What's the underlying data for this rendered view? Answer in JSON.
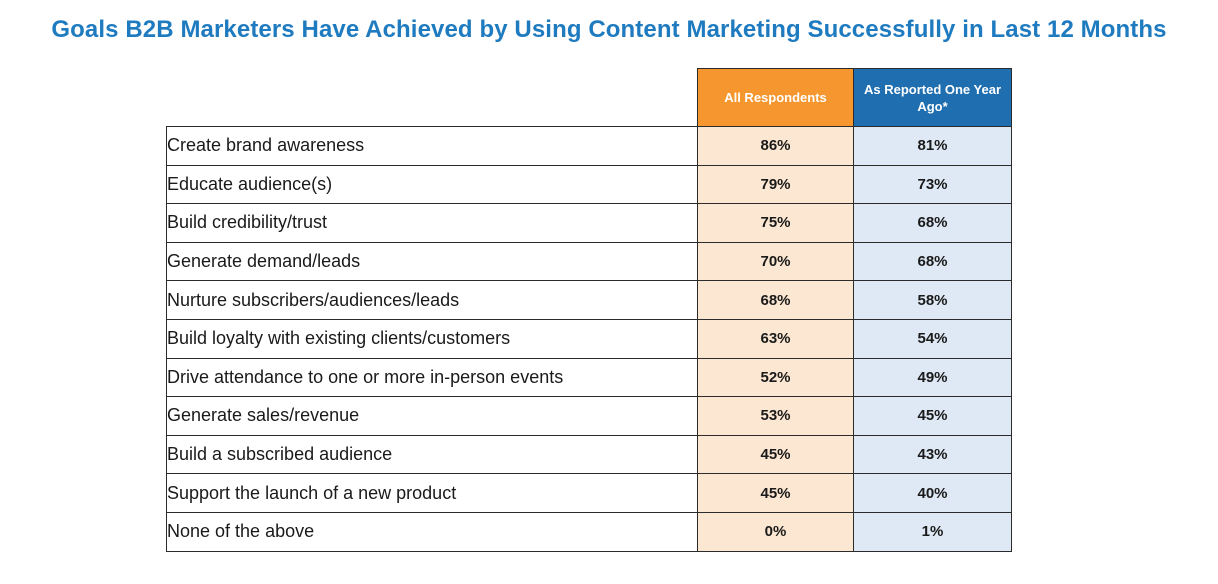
{
  "chart_data": {
    "type": "table",
    "title": "Goals B2B Marketers Have Achieved by Using Content Marketing Successfully in Last 12 Months",
    "columns": [
      "All Respondents",
      "As Reported One Year Ago*"
    ],
    "rows": [
      {
        "label": "Create brand awareness",
        "all": "86%",
        "ago": "81%"
      },
      {
        "label": "Educate audience(s)",
        "all": "79%",
        "ago": "73%"
      },
      {
        "label": "Build credibility/trust",
        "all": "75%",
        "ago": "68%"
      },
      {
        "label": "Generate demand/leads",
        "all": "70%",
        "ago": "68%"
      },
      {
        "label": "Nurture subscribers/audiences/leads",
        "all": "68%",
        "ago": "58%"
      },
      {
        "label": "Build loyalty with existing clients/customers",
        "all": "63%",
        "ago": "54%"
      },
      {
        "label": "Drive attendance to one or more in-person events",
        "all": "52%",
        "ago": "49%"
      },
      {
        "label": "Generate sales/revenue",
        "all": "53%",
        "ago": "45%"
      },
      {
        "label": "Build a subscribed audience",
        "all": "45%",
        "ago": "43%"
      },
      {
        "label": "Support the launch of a new product",
        "all": "45%",
        "ago": "40%"
      },
      {
        "label": "None of the above",
        "all": "0%",
        "ago": "1%"
      }
    ],
    "colors": {
      "title": "#1f7bc0",
      "all_header": "#f5962e",
      "all_fill": "#fce8d2",
      "ago_header": "#1f6eb0",
      "ago_fill": "#dfe9f5"
    }
  }
}
